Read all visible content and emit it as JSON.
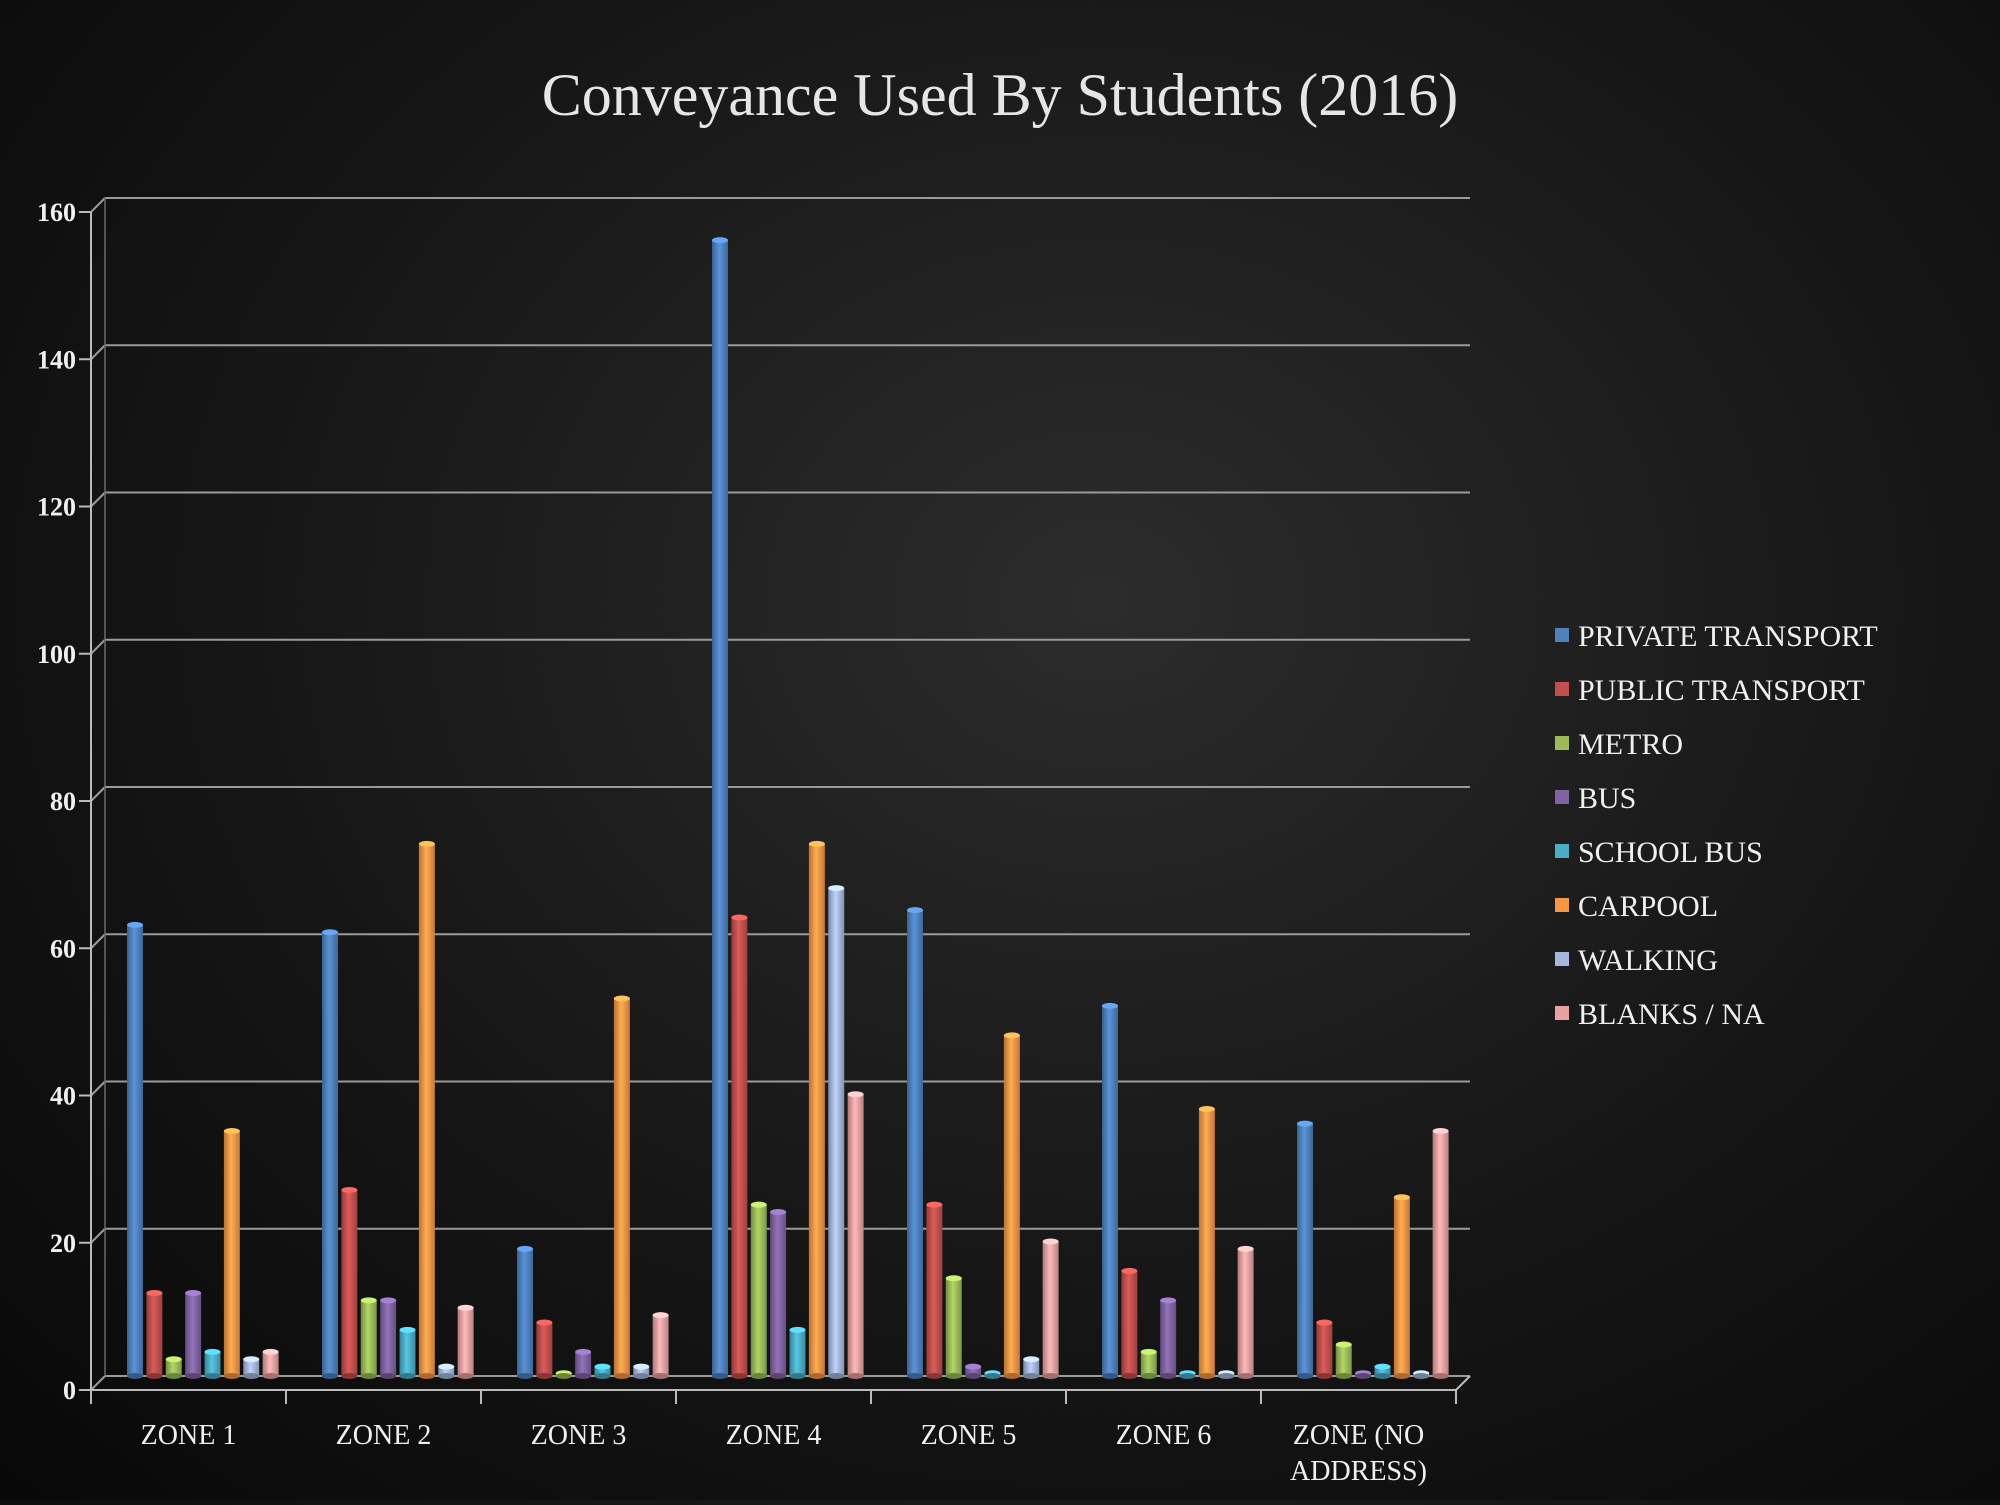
{
  "chart_data": {
    "type": "bar",
    "title": "Conveyance Used By Students (2016)",
    "xlabel": "",
    "ylabel": "",
    "ylim": [
      0,
      160
    ],
    "yticks": [
      0,
      20,
      40,
      60,
      80,
      100,
      120,
      140,
      160
    ],
    "grid": true,
    "legend_position": "right",
    "categories": [
      [
        "ZONE 1"
      ],
      [
        "ZONE 2"
      ],
      [
        "ZONE 3"
      ],
      [
        "ZONE 4"
      ],
      [
        "ZONE 5"
      ],
      [
        "ZONE 6"
      ],
      [
        "ZONE (NO",
        "ADDRESS)"
      ]
    ],
    "series": [
      {
        "name": "PRIVATE TRANSPORT",
        "color": "#4f81bd",
        "values": [
          61,
          60,
          17,
          154,
          63,
          50,
          34
        ]
      },
      {
        "name": "PUBLIC TRANSPORT",
        "color": "#c0504d",
        "values": [
          11,
          25,
          7,
          62,
          23,
          14,
          7
        ]
      },
      {
        "name": "METRO",
        "color": "#9bbb59",
        "values": [
          2,
          10,
          0,
          23,
          13,
          3,
          4
        ]
      },
      {
        "name": "BUS",
        "color": "#8064a2",
        "values": [
          11,
          10,
          3,
          22,
          1,
          10,
          0
        ]
      },
      {
        "name": "SCHOOL BUS",
        "color": "#4bacc6",
        "values": [
          3,
          6,
          1,
          6,
          0,
          0,
          1
        ]
      },
      {
        "name": "CARPOOL",
        "color": "#f79646",
        "values": [
          33,
          72,
          51,
          72,
          46,
          36,
          24
        ]
      },
      {
        "name": "WALKING",
        "color": "#a5b7dc",
        "values": [
          2,
          1,
          1,
          66,
          2,
          0,
          0
        ]
      },
      {
        "name": "BLANKS / NA",
        "color": "#e6a2a2",
        "values": [
          3,
          9,
          8,
          38,
          18,
          17,
          33
        ]
      }
    ]
  }
}
